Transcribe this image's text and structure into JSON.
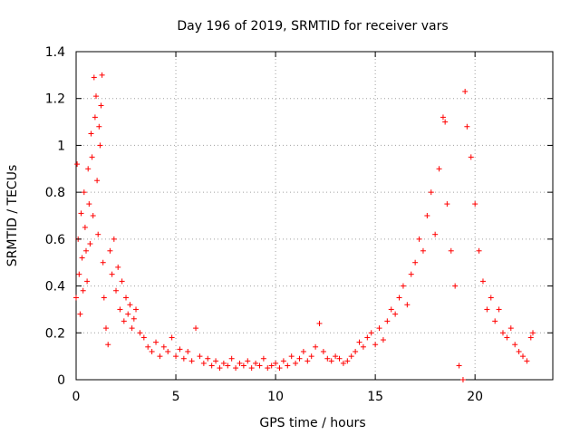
{
  "chart_data": {
    "type": "scatter",
    "title": "Day 196 of 2019, SRMTID for receiver vars",
    "xlabel": "GPS time / hours",
    "ylabel": "SRMTID / TECUs",
    "xlim": [
      0,
      23.9
    ],
    "ylim": [
      0,
      1.4
    ],
    "xticks": [
      "0",
      "5",
      "10",
      "15",
      "20"
    ],
    "yticks": [
      "0",
      "0.2",
      "0.4",
      "0.6",
      "0.8",
      "1",
      "1.2",
      "1.4"
    ],
    "grid": true,
    "marker": "plus",
    "color": "#ff0000",
    "series": [
      {
        "name": "SRMTID",
        "points": [
          [
            0.0,
            0.35
          ],
          [
            0.05,
            0.92
          ],
          [
            0.1,
            0.6
          ],
          [
            0.15,
            0.45
          ],
          [
            0.2,
            0.28
          ],
          [
            0.25,
            0.71
          ],
          [
            0.3,
            0.52
          ],
          [
            0.35,
            0.38
          ],
          [
            0.4,
            0.8
          ],
          [
            0.45,
            0.65
          ],
          [
            0.5,
            0.55
          ],
          [
            0.55,
            0.42
          ],
          [
            0.6,
            0.9
          ],
          [
            0.65,
            0.75
          ],
          [
            0.7,
            0.58
          ],
          [
            0.75,
            1.05
          ],
          [
            0.8,
            0.95
          ],
          [
            0.85,
            0.7
          ],
          [
            0.9,
            1.29
          ],
          [
            0.95,
            1.12
          ],
          [
            1.0,
            1.21
          ],
          [
            1.05,
            0.85
          ],
          [
            1.1,
            0.62
          ],
          [
            1.15,
            1.08
          ],
          [
            1.2,
            1.0
          ],
          [
            1.25,
            1.17
          ],
          [
            1.3,
            1.3
          ],
          [
            1.35,
            0.5
          ],
          [
            1.4,
            0.35
          ],
          [
            1.5,
            0.22
          ],
          [
            1.6,
            0.15
          ],
          [
            1.7,
            0.55
          ],
          [
            1.8,
            0.45
          ],
          [
            1.9,
            0.6
          ],
          [
            2.0,
            0.38
          ],
          [
            2.1,
            0.48
          ],
          [
            2.2,
            0.3
          ],
          [
            2.3,
            0.42
          ],
          [
            2.4,
            0.25
          ],
          [
            2.5,
            0.35
          ],
          [
            2.6,
            0.28
          ],
          [
            2.7,
            0.32
          ],
          [
            2.8,
            0.22
          ],
          [
            2.9,
            0.26
          ],
          [
            3.0,
            0.3
          ],
          [
            3.2,
            0.2
          ],
          [
            3.4,
            0.18
          ],
          [
            3.6,
            0.14
          ],
          [
            3.8,
            0.12
          ],
          [
            4.0,
            0.16
          ],
          [
            4.2,
            0.1
          ],
          [
            4.4,
            0.14
          ],
          [
            4.6,
            0.12
          ],
          [
            4.8,
            0.18
          ],
          [
            5.0,
            0.1
          ],
          [
            5.2,
            0.13
          ],
          [
            5.4,
            0.09
          ],
          [
            5.6,
            0.12
          ],
          [
            5.8,
            0.08
          ],
          [
            6.0,
            0.22
          ],
          [
            6.2,
            0.1
          ],
          [
            6.4,
            0.07
          ],
          [
            6.6,
            0.09
          ],
          [
            6.8,
            0.06
          ],
          [
            7.0,
            0.08
          ],
          [
            7.2,
            0.05
          ],
          [
            7.4,
            0.07
          ],
          [
            7.6,
            0.06
          ],
          [
            7.8,
            0.09
          ],
          [
            8.0,
            0.05
          ],
          [
            8.2,
            0.07
          ],
          [
            8.4,
            0.06
          ],
          [
            8.6,
            0.08
          ],
          [
            8.8,
            0.05
          ],
          [
            9.0,
            0.07
          ],
          [
            9.2,
            0.06
          ],
          [
            9.4,
            0.09
          ],
          [
            9.6,
            0.05
          ],
          [
            9.8,
            0.06
          ],
          [
            10.0,
            0.07
          ],
          [
            10.2,
            0.05
          ],
          [
            10.4,
            0.08
          ],
          [
            10.6,
            0.06
          ],
          [
            10.8,
            0.1
          ],
          [
            11.0,
            0.07
          ],
          [
            11.2,
            0.09
          ],
          [
            11.4,
            0.12
          ],
          [
            11.6,
            0.08
          ],
          [
            11.8,
            0.1
          ],
          [
            12.0,
            0.14
          ],
          [
            12.2,
            0.24
          ],
          [
            12.4,
            0.12
          ],
          [
            12.6,
            0.09
          ],
          [
            12.8,
            0.08
          ],
          [
            13.0,
            0.1
          ],
          [
            13.2,
            0.09
          ],
          [
            13.4,
            0.07
          ],
          [
            13.6,
            0.08
          ],
          [
            13.8,
            0.1
          ],
          [
            14.0,
            0.12
          ],
          [
            14.2,
            0.16
          ],
          [
            14.4,
            0.14
          ],
          [
            14.6,
            0.18
          ],
          [
            14.8,
            0.2
          ],
          [
            15.0,
            0.15
          ],
          [
            15.2,
            0.22
          ],
          [
            15.4,
            0.17
          ],
          [
            15.6,
            0.25
          ],
          [
            15.8,
            0.3
          ],
          [
            16.0,
            0.28
          ],
          [
            16.2,
            0.35
          ],
          [
            16.4,
            0.4
          ],
          [
            16.6,
            0.32
          ],
          [
            16.8,
            0.45
          ],
          [
            17.0,
            0.5
          ],
          [
            17.2,
            0.6
          ],
          [
            17.4,
            0.55
          ],
          [
            17.6,
            0.7
          ],
          [
            17.8,
            0.8
          ],
          [
            18.0,
            0.62
          ],
          [
            18.2,
            0.9
          ],
          [
            18.4,
            1.12
          ],
          [
            18.5,
            1.1
          ],
          [
            18.6,
            0.75
          ],
          [
            18.8,
            0.55
          ],
          [
            19.0,
            0.4
          ],
          [
            19.2,
            0.06
          ],
          [
            19.4,
            0.0
          ],
          [
            19.5,
            1.23
          ],
          [
            19.6,
            1.08
          ],
          [
            19.8,
            0.95
          ],
          [
            20.0,
            0.75
          ],
          [
            20.2,
            0.55
          ],
          [
            20.4,
            0.42
          ],
          [
            20.6,
            0.3
          ],
          [
            20.8,
            0.35
          ],
          [
            21.0,
            0.25
          ],
          [
            21.2,
            0.3
          ],
          [
            21.4,
            0.2
          ],
          [
            21.6,
            0.18
          ],
          [
            21.8,
            0.22
          ],
          [
            22.0,
            0.15
          ],
          [
            22.2,
            0.12
          ],
          [
            22.4,
            0.1
          ],
          [
            22.6,
            0.08
          ],
          [
            22.8,
            0.18
          ],
          [
            22.9,
            0.2
          ]
        ]
      }
    ]
  }
}
